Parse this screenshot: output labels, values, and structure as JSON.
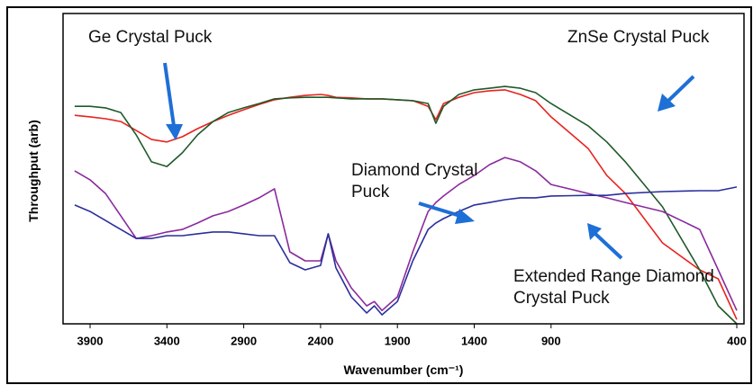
{
  "chart_data": {
    "type": "line",
    "xlabel": "Wavenumber (cm⁻¹)",
    "ylabel": "Throughput (arb)",
    "xlim": [
      4075,
      400
    ],
    "ylim": [
      0,
      100
    ],
    "xticks": [
      3900,
      3400,
      2900,
      2400,
      1900,
      1400,
      900,
      400
    ],
    "x": [
      4000,
      3900,
      3800,
      3700,
      3600,
      3500,
      3400,
      3300,
      3200,
      3100,
      3000,
      2900,
      2800,
      2700,
      2600,
      2500,
      2400,
      2350,
      2300,
      2200,
      2100,
      2050,
      2000,
      1900,
      1800,
      1700,
      1650,
      1600,
      1500,
      1400,
      1300,
      1200,
      1100,
      1000,
      900,
      800,
      750,
      700,
      600,
      500,
      450,
      400
    ],
    "series": [
      {
        "name": "Ge Crystal Puck",
        "color": "#e8231f",
        "values": [
          67.2,
          66.7,
          66.1,
          65.2,
          62.3,
          59.4,
          58.6,
          60.3,
          62.9,
          65.2,
          67.2,
          69.0,
          70.7,
          72.2,
          73.0,
          73.6,
          73.9,
          73.6,
          73.0,
          72.8,
          72.5,
          72.5,
          72.5,
          72.2,
          71.9,
          70.1,
          65.8,
          71.0,
          73.0,
          74.5,
          75.1,
          75.4,
          73.9,
          71.9,
          66.7,
          56.5,
          47.8,
          42.0,
          26.1,
          17.4,
          14.5,
          1.4
        ]
      },
      {
        "name": "ZnSe Crystal Puck",
        "color": "#1f5a2a",
        "values": [
          70.1,
          70.1,
          69.6,
          68.1,
          60.9,
          52.2,
          50.7,
          55.1,
          60.9,
          65.2,
          68.1,
          69.6,
          71.0,
          72.5,
          72.8,
          73.0,
          73.0,
          73.0,
          72.8,
          72.5,
          72.5,
          72.5,
          72.5,
          72.2,
          71.9,
          71.0,
          64.6,
          70.1,
          73.9,
          75.4,
          75.9,
          76.5,
          75.9,
          74.5,
          71.0,
          63.8,
          58.6,
          52.2,
          37.7,
          17.4,
          5.8,
          0
        ]
      },
      {
        "name": "Diamond Crystal Puck",
        "color": "#8a2a9e",
        "values": [
          49.3,
          46.4,
          42.0,
          34.8,
          27.5,
          28.4,
          29.6,
          30.4,
          32.5,
          34.8,
          36.2,
          38.3,
          40.6,
          43.5,
          23.2,
          20.3,
          20.3,
          29.0,
          20.3,
          11.6,
          5.8,
          7.2,
          4.3,
          8.7,
          23.2,
          36.2,
          39.1,
          41.2,
          44.9,
          47.8,
          51.3,
          53.6,
          52.2,
          49.3,
          44.9,
          42.0,
          40.6,
          39.1,
          36.2,
          30.4,
          17.4,
          4.3
        ]
      },
      {
        "name": "Extended Range Diamond Crystal Puck",
        "color": "#2b2f9a",
        "values": [
          38.3,
          36.2,
          33.3,
          30.4,
          27.5,
          27.5,
          28.4,
          28.4,
          29.0,
          29.6,
          29.6,
          29.0,
          28.4,
          28.4,
          19.7,
          17.4,
          18.8,
          29.0,
          18.0,
          8.7,
          3.5,
          5.8,
          2.9,
          7.2,
          20.3,
          30.4,
          32.5,
          33.9,
          36.2,
          38.3,
          39.1,
          40.0,
          40.6,
          40.6,
          41.2,
          41.4,
          41.4,
          42.0,
          42.6,
          42.9,
          42.9,
          44.1
        ]
      }
    ]
  }
}
